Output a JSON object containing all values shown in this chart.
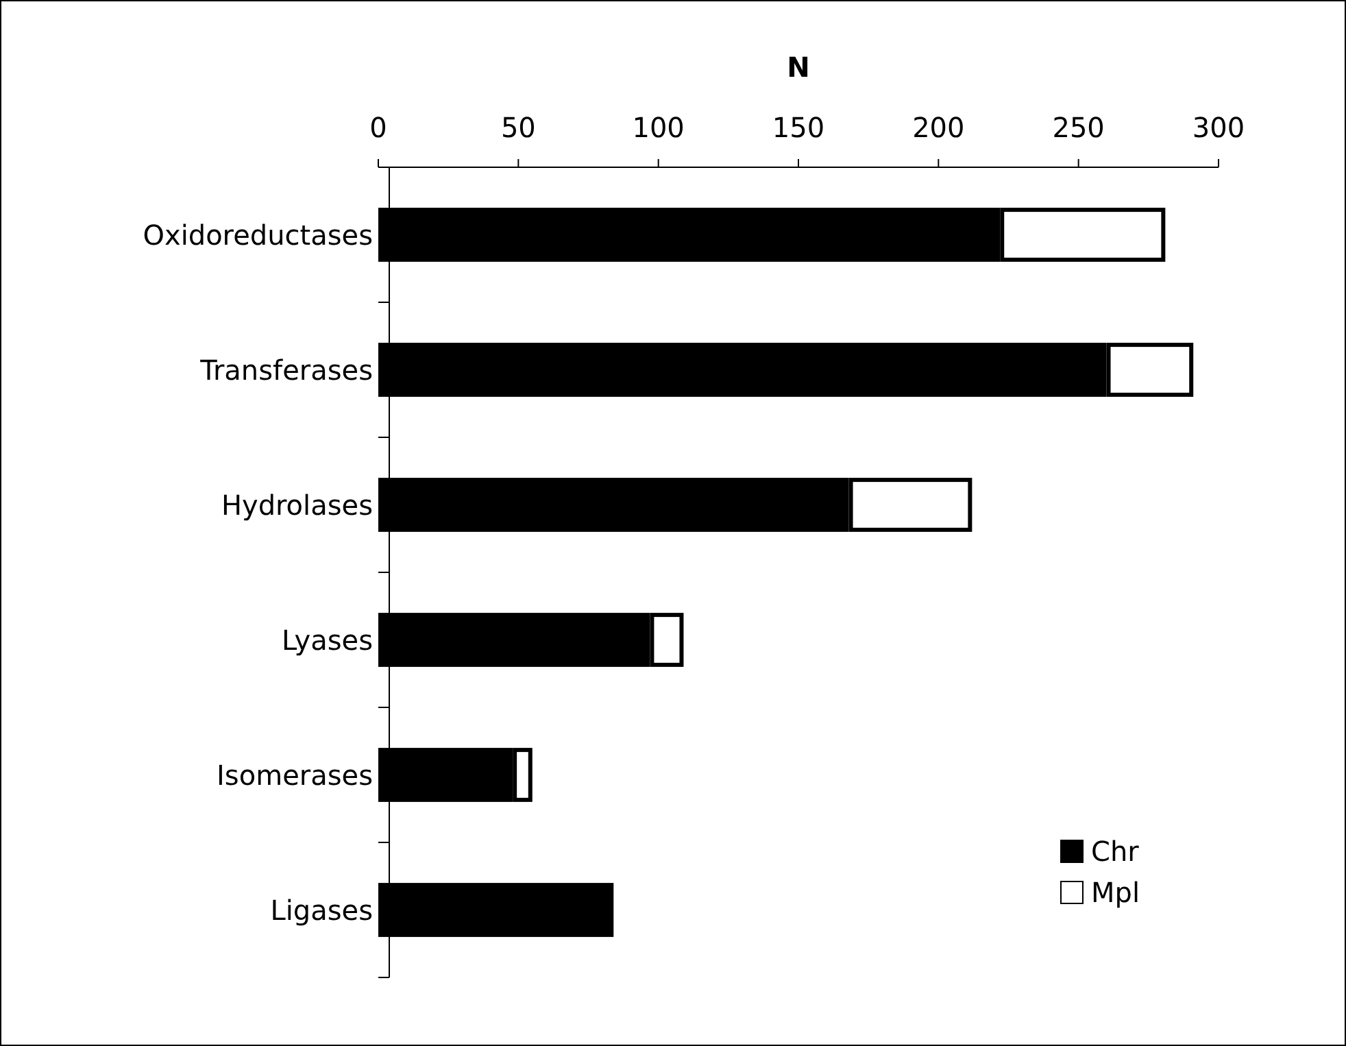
{
  "chart_data": {
    "type": "bar",
    "orientation": "horizontal",
    "stacked": true,
    "xlabel": "N",
    "categories": [
      "Oxidoreductases",
      "Transferases",
      "Hydrolases",
      "Lyases",
      "Isomerases",
      "Ligases"
    ],
    "series": [
      {
        "name": "Chr",
        "color": "#000000",
        "values": [
          222,
          260,
          168,
          97,
          48,
          84
        ]
      },
      {
        "name": "Mpl",
        "color": "#ffffff",
        "values": [
          59,
          31,
          44,
          12,
          7,
          0
        ]
      }
    ],
    "xlim": [
      0,
      300
    ],
    "xticks": [
      0,
      50,
      100,
      150,
      200,
      250,
      300
    ],
    "grid": false,
    "legend": "bottom right"
  }
}
